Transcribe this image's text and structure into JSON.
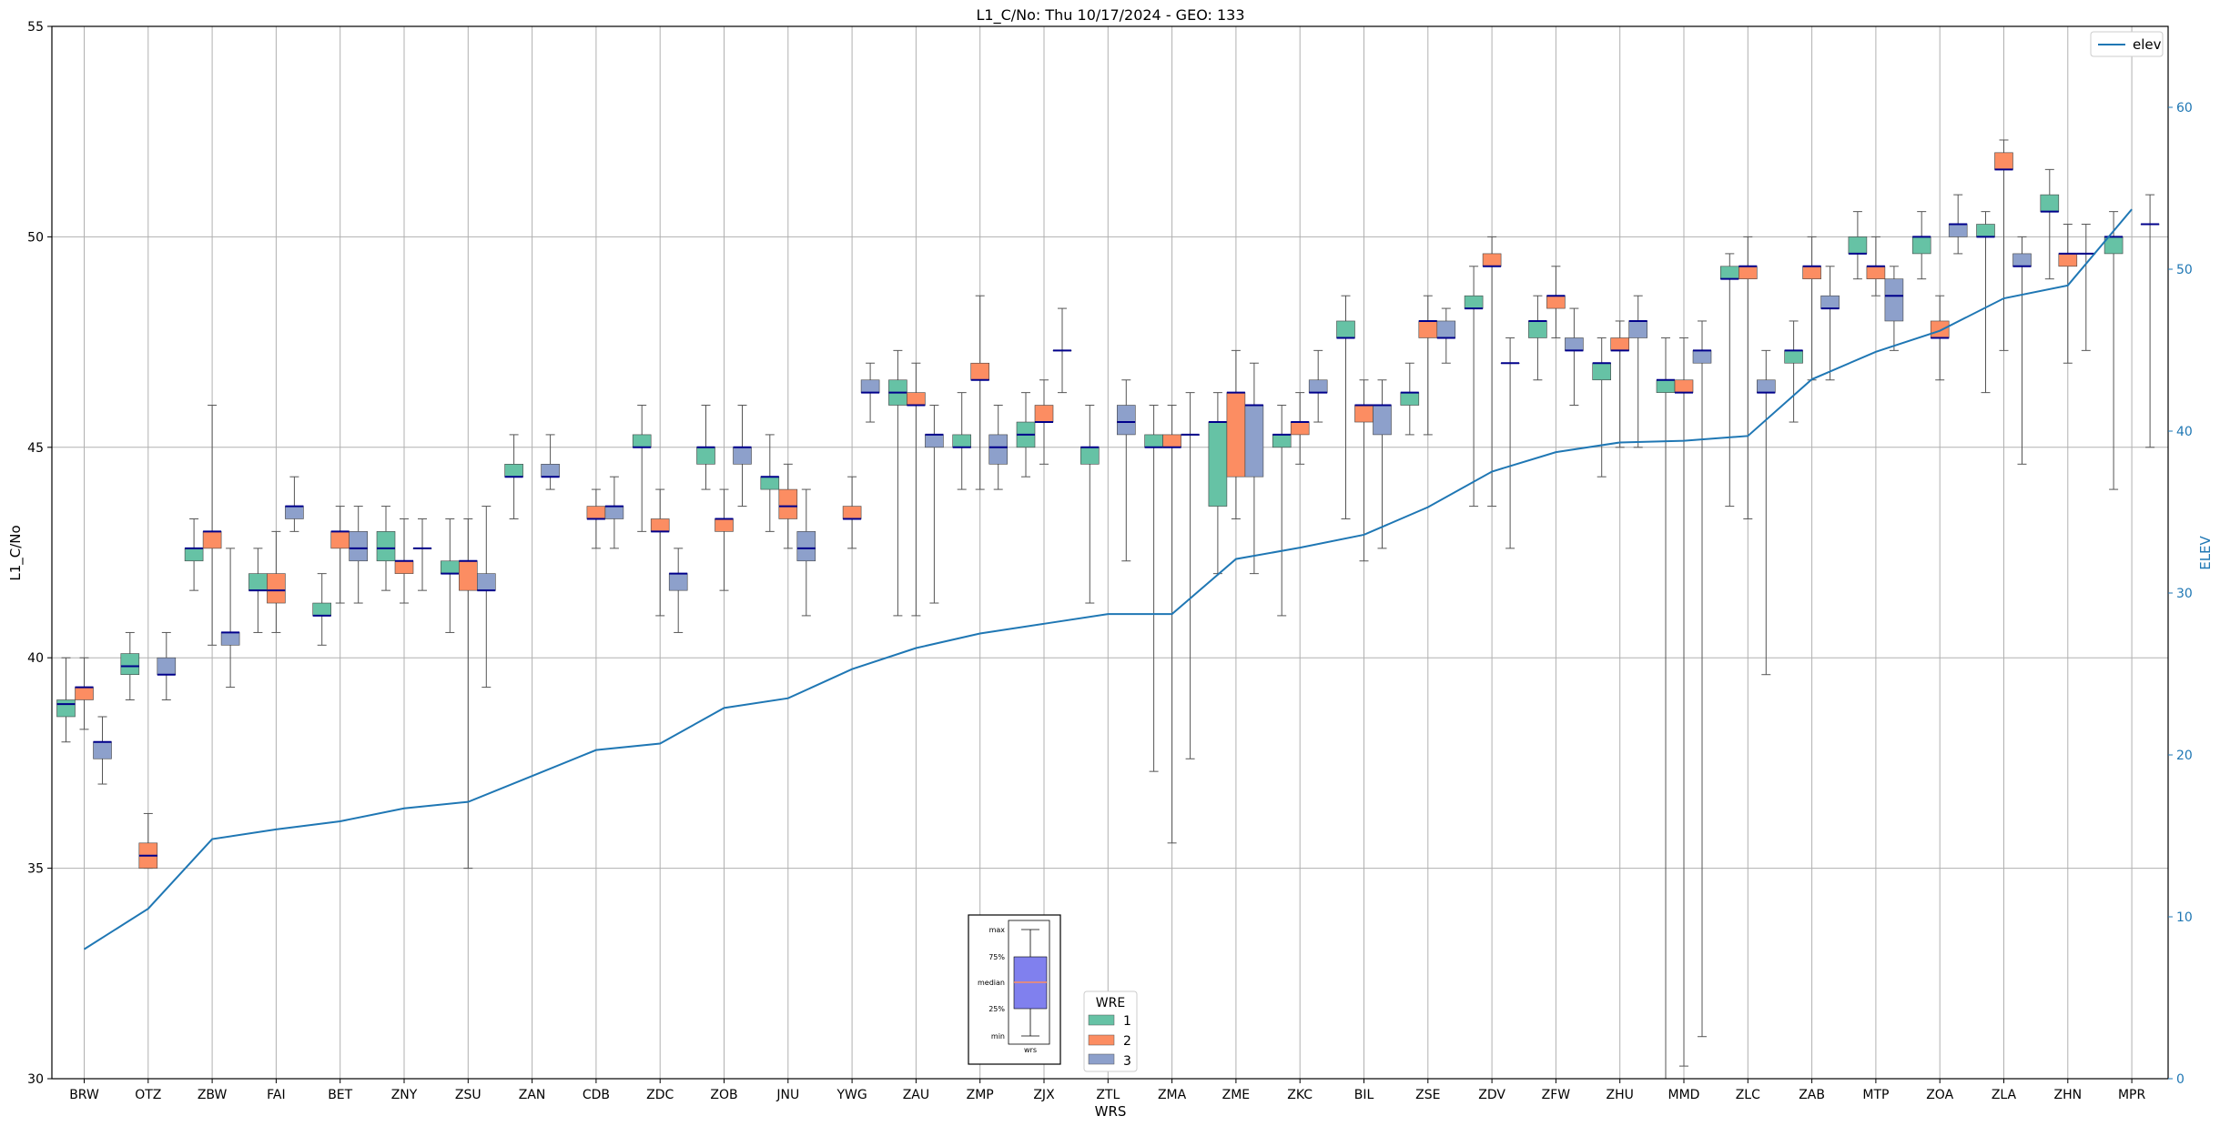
{
  "chart_data": {
    "type": "box",
    "title": "L1_C/No: Thu 10/17/2024 - GEO: 133",
    "xlabel": "WRS",
    "ylabel": "L1_C/No",
    "y2label": "ELEV",
    "ylim": [
      30,
      55
    ],
    "y2lim": [
      0,
      65
    ],
    "yticks": [
      30,
      35,
      40,
      45,
      50,
      55
    ],
    "y2ticks": [
      0,
      10,
      20,
      30,
      40,
      50,
      60
    ],
    "grid": true,
    "categories": [
      "BRW",
      "OTZ",
      "ZBW",
      "FAI",
      "BET",
      "ZNY",
      "ZSU",
      "ZAN",
      "CDB",
      "ZDC",
      "ZOB",
      "JNU",
      "YWG",
      "ZAU",
      "ZMP",
      "ZJX",
      "ZTL",
      "ZMA",
      "ZME",
      "ZKC",
      "BIL",
      "ZSE",
      "ZDV",
      "ZFW",
      "ZHU",
      "MMD",
      "ZLC",
      "ZAB",
      "MTP",
      "ZOA",
      "ZLA",
      "ZHN",
      "MPR"
    ],
    "colors": {
      "1": "#66c2a5",
      "2": "#fc8d62",
      "3": "#8da0cb",
      "elev": "#1f77b4",
      "median": "#00008b",
      "whisker": "#555555"
    },
    "legend_wre": {
      "title": "WRE",
      "entries": [
        "1",
        "2",
        "3"
      ],
      "placement": "bottom-center"
    },
    "legend_elev": {
      "label": "elev",
      "placement": "top-right"
    },
    "boxes": {
      "1": [
        [
          38.0,
          38.6,
          38.9,
          39.0,
          40.0
        ],
        [
          39.0,
          39.6,
          39.8,
          40.1,
          40.6
        ],
        [
          41.6,
          42.3,
          42.6,
          42.6,
          43.3
        ],
        [
          40.6,
          41.6,
          41.6,
          42.0,
          42.6
        ],
        [
          40.3,
          41.0,
          41.0,
          41.3,
          42.0
        ],
        [
          41.6,
          42.3,
          42.6,
          43.0,
          43.6
        ],
        [
          40.6,
          42.0,
          42.0,
          42.3,
          43.3
        ],
        [
          43.3,
          44.3,
          44.3,
          44.6,
          45.3
        ],
        null,
        [
          43.0,
          45.0,
          45.0,
          45.3,
          46.0
        ],
        [
          44.0,
          44.6,
          45.0,
          45.0,
          46.0
        ],
        [
          43.0,
          44.0,
          44.3,
          44.3,
          45.3
        ],
        null,
        [
          41.0,
          46.0,
          46.3,
          46.6,
          47.3
        ],
        [
          44.0,
          45.0,
          45.0,
          45.3,
          46.3
        ],
        [
          44.3,
          45.0,
          45.3,
          45.6,
          46.3
        ],
        [
          41.3,
          44.6,
          45.0,
          45.0,
          46.0
        ],
        [
          37.3,
          45.0,
          45.0,
          45.3,
          46.0
        ],
        [
          42.0,
          43.6,
          45.6,
          45.6,
          46.3
        ],
        [
          41.0,
          45.0,
          45.3,
          45.3,
          46.0
        ],
        [
          43.3,
          47.6,
          47.6,
          48.0,
          48.6
        ],
        [
          45.3,
          46.0,
          46.3,
          46.3,
          47.0
        ],
        [
          43.6,
          48.3,
          48.3,
          48.6,
          49.3
        ],
        [
          46.6,
          47.6,
          48.0,
          48.0,
          48.6
        ],
        [
          44.3,
          46.6,
          47.0,
          47.0,
          47.6
        ],
        [
          30.0,
          46.3,
          46.6,
          46.6,
          47.6
        ],
        [
          43.6,
          49.0,
          49.0,
          49.3,
          49.6
        ],
        [
          45.6,
          47.0,
          47.3,
          47.3,
          48.0
        ],
        [
          49.0,
          49.6,
          49.6,
          50.0,
          50.6
        ],
        [
          49.0,
          49.6,
          50.0,
          50.0,
          50.6
        ],
        [
          46.3,
          50.0,
          50.0,
          50.3,
          50.6
        ],
        [
          49.0,
          50.6,
          50.6,
          51.0,
          51.6
        ],
        [
          44.0,
          49.6,
          50.0,
          50.0,
          50.6
        ]
      ],
      "2": [
        [
          38.3,
          39.0,
          39.3,
          39.3,
          40.0
        ],
        [
          35.0,
          35.0,
          35.3,
          35.6,
          36.3
        ],
        [
          40.3,
          42.6,
          43.0,
          43.0,
          46.0
        ],
        [
          40.6,
          41.3,
          41.6,
          42.0,
          43.0
        ],
        [
          41.3,
          42.6,
          43.0,
          43.0,
          43.6
        ],
        [
          41.3,
          42.0,
          42.3,
          42.3,
          43.3
        ],
        [
          35.0,
          41.6,
          42.3,
          42.3,
          43.3
        ],
        null,
        [
          42.6,
          43.3,
          43.3,
          43.6,
          44.0
        ],
        [
          41.0,
          43.0,
          43.0,
          43.3,
          44.0
        ],
        [
          41.6,
          43.0,
          43.3,
          43.3,
          44.0
        ],
        [
          42.6,
          43.3,
          43.6,
          44.0,
          44.6
        ],
        [
          42.6,
          43.3,
          43.3,
          43.6,
          44.3
        ],
        [
          41.0,
          46.0,
          46.0,
          46.3,
          47.0
        ],
        [
          44.0,
          46.6,
          46.6,
          47.0,
          48.6
        ],
        [
          44.6,
          45.6,
          45.6,
          46.0,
          46.6
        ],
        null,
        [
          35.6,
          45.0,
          45.0,
          45.3,
          46.0
        ],
        [
          43.3,
          44.3,
          46.3,
          46.3,
          47.3
        ],
        [
          44.6,
          45.3,
          45.6,
          45.6,
          46.3
        ],
        [
          42.3,
          45.6,
          46.0,
          46.0,
          46.6
        ],
        [
          45.3,
          47.6,
          48.0,
          48.0,
          48.6
        ],
        [
          43.6,
          49.3,
          49.3,
          49.6,
          50.0
        ],
        [
          47.6,
          48.3,
          48.6,
          48.6,
          49.3
        ],
        [
          45.0,
          47.3,
          47.3,
          47.6,
          48.0
        ],
        [
          30.3,
          46.3,
          46.3,
          46.6,
          47.6
        ],
        [
          43.3,
          49.0,
          49.3,
          49.3,
          50.0
        ],
        [
          46.6,
          49.0,
          49.3,
          49.3,
          50.0
        ],
        [
          48.6,
          49.0,
          49.3,
          49.3,
          50.0
        ],
        [
          46.6,
          47.6,
          47.6,
          48.0,
          48.6
        ],
        [
          47.3,
          51.6,
          51.6,
          52.0,
          52.3
        ],
        [
          47.0,
          49.3,
          49.6,
          49.6,
          50.3
        ],
        null
      ],
      "3": [
        [
          37.0,
          37.6,
          38.0,
          38.0,
          38.6
        ],
        [
          39.0,
          39.6,
          39.6,
          40.0,
          40.6
        ],
        [
          39.3,
          40.3,
          40.6,
          40.6,
          42.6
        ],
        [
          43.0,
          43.3,
          43.6,
          43.6,
          44.3
        ],
        [
          41.3,
          42.3,
          42.6,
          43.0,
          43.6
        ],
        [
          41.6,
          42.6,
          42.6,
          42.6,
          43.3
        ],
        [
          39.3,
          41.6,
          41.6,
          42.0,
          43.6
        ],
        [
          44.0,
          44.3,
          44.3,
          44.6,
          45.3
        ],
        [
          42.6,
          43.3,
          43.6,
          43.6,
          44.3
        ],
        [
          40.6,
          41.6,
          42.0,
          42.0,
          42.6
        ],
        [
          43.6,
          44.6,
          45.0,
          45.0,
          46.0
        ],
        [
          41.0,
          42.3,
          42.6,
          43.0,
          44.0
        ],
        [
          45.6,
          46.3,
          46.3,
          46.6,
          47.0
        ],
        [
          41.3,
          45.0,
          45.3,
          45.3,
          46.0
        ],
        [
          44.0,
          44.6,
          45.0,
          45.3,
          46.0
        ],
        [
          46.3,
          47.3,
          47.3,
          47.3,
          48.3
        ],
        [
          42.3,
          45.3,
          45.6,
          46.0,
          46.6
        ],
        [
          37.6,
          45.3,
          45.3,
          45.3,
          46.3
        ],
        [
          42.0,
          44.3,
          46.0,
          46.0,
          47.0
        ],
        [
          45.6,
          46.3,
          46.3,
          46.6,
          47.3
        ],
        [
          42.6,
          45.3,
          46.0,
          46.0,
          46.6
        ],
        [
          47.0,
          47.6,
          47.6,
          48.0,
          48.3
        ],
        [
          42.6,
          47.0,
          47.0,
          47.0,
          47.6
        ],
        [
          46.0,
          47.3,
          47.3,
          47.6,
          48.3
        ],
        [
          45.0,
          47.6,
          48.0,
          48.0,
          48.6
        ],
        [
          31.0,
          47.0,
          47.3,
          47.3,
          48.0
        ],
        [
          39.6,
          46.3,
          46.3,
          46.6,
          47.3
        ],
        [
          46.6,
          48.3,
          48.3,
          48.6,
          49.3
        ],
        [
          47.3,
          48.0,
          48.6,
          49.0,
          49.3
        ],
        [
          49.6,
          50.0,
          50.3,
          50.3,
          51.0
        ],
        [
          44.6,
          49.3,
          49.3,
          49.6,
          50.0
        ],
        [
          47.3,
          49.6,
          49.6,
          49.6,
          50.3
        ],
        [
          45.0,
          50.3,
          50.3,
          50.3,
          51.0
        ]
      ]
    },
    "elev": [
      8,
      10.5,
      14.8,
      15.4,
      15.9,
      16.7,
      17.1,
      18.7,
      20.3,
      20.7,
      22.9,
      23.5,
      25.3,
      26.6,
      27.5,
      28.1,
      28.7,
      28.7,
      32.1,
      32.8,
      33.6,
      35.3,
      37.5,
      38.7,
      39.3,
      39.4,
      39.7,
      43.2,
      44.9,
      46.2,
      48.2,
      49.0,
      53.7
    ],
    "inset": {
      "labels": [
        "max",
        "75%",
        "median",
        "25%",
        "min"
      ],
      "xlabel": "wrs",
      "box_color": "#8080ee",
      "median_color": "#fc8d62"
    }
  }
}
